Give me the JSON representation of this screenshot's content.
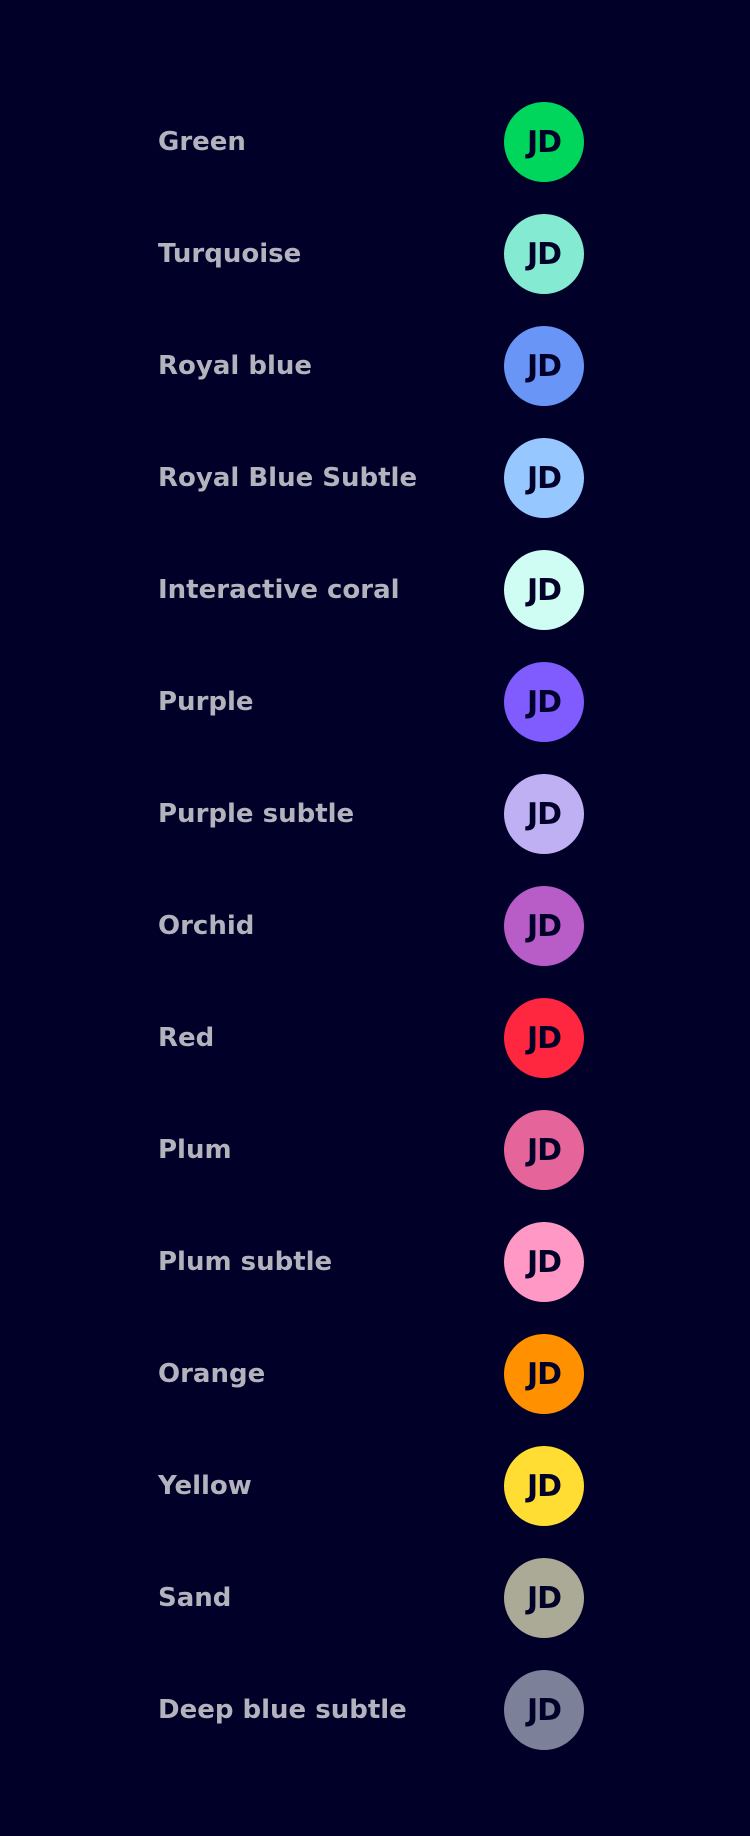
{
  "initials": "JD",
  "items": [
    {
      "label": "Green",
      "color": "#00d65c"
    },
    {
      "label": "Turquoise",
      "color": "#85ead2"
    },
    {
      "label": "Royal blue",
      "color": "#6895f6"
    },
    {
      "label": "Royal Blue Subtle",
      "color": "#97c7ff"
    },
    {
      "label": "Interactive coral",
      "color": "#cffcf3"
    },
    {
      "label": "Purple",
      "color": "#805cff"
    },
    {
      "label": "Purple subtle",
      "color": "#bfb0f3"
    },
    {
      "label": "Orchid",
      "color": "#b85cc8"
    },
    {
      "label": "Red",
      "color": "#ff2640"
    },
    {
      "label": "Plum",
      "color": "#e5659b"
    },
    {
      "label": "Plum subtle",
      "color": "#ff98c4"
    },
    {
      "label": "Orange",
      "color": "#ff9000"
    },
    {
      "label": "Yellow",
      "color": "#ffdd33"
    },
    {
      "label": "Sand",
      "color": "#aaaa96"
    },
    {
      "label": "Deep blue subtle",
      "color": "#7d8099"
    }
  ]
}
